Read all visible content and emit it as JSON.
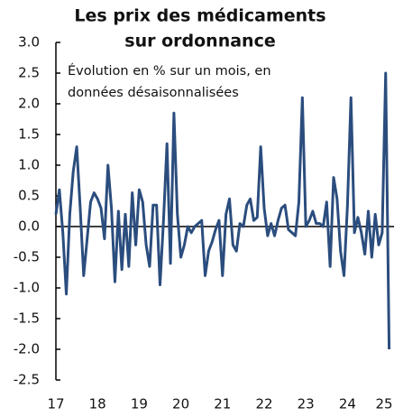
{
  "chart_data": {
    "type": "line",
    "title": [
      "Les prix des médicaments",
      "sur ordonnance"
    ],
    "subtitle": [
      "Évolution en % sur un mois, en",
      "données désaisonnalisées"
    ],
    "categories": [
      "17",
      null,
      null,
      null,
      null,
      null,
      null,
      null,
      null,
      null,
      null,
      null,
      "18",
      null,
      null,
      null,
      null,
      null,
      null,
      null,
      null,
      null,
      null,
      null,
      "19",
      null,
      null,
      null,
      null,
      null,
      null,
      null,
      null,
      null,
      null,
      null,
      "20",
      null,
      null,
      null,
      null,
      null,
      null,
      null,
      null,
      null,
      null,
      null,
      "21",
      null,
      null,
      null,
      null,
      null,
      null,
      null,
      null,
      null,
      null,
      null,
      "22",
      null,
      null,
      null,
      null,
      null,
      null,
      null,
      null,
      null,
      null,
      null,
      "23",
      null,
      null,
      null,
      null,
      null,
      null,
      null,
      null,
      null,
      null,
      null,
      "24",
      null,
      null,
      null,
      null,
      null,
      null,
      null,
      null,
      null,
      null,
      null,
      "25"
    ],
    "series": [
      {
        "color": "#2b4d7e",
        "values": [
          0.2,
          0.6,
          -0.1,
          -1.1,
          0.2,
          0.9,
          1.3,
          0.3,
          -0.8,
          -0.2,
          0.4,
          0.55,
          0.45,
          0.3,
          -0.2,
          1.0,
          0.3,
          -0.9,
          0.25,
          -0.7,
          0.2,
          -0.65,
          0.55,
          -0.3,
          0.6,
          0.4,
          -0.3,
          -0.65,
          0.35,
          0.35,
          -0.95,
          0.1,
          1.35,
          -0.6,
          1.85,
          0.2,
          -0.5,
          -0.3,
          0.0,
          -0.1,
          0.0,
          0.05,
          0.1,
          -0.8,
          -0.4,
          -0.25,
          -0.05,
          0.1,
          -0.8,
          0.2,
          0.45,
          -0.3,
          -0.4,
          0.05,
          0.0,
          0.35,
          0.45,
          0.1,
          0.15,
          1.3,
          0.3,
          -0.15,
          0.05,
          -0.15,
          0.1,
          0.3,
          0.35,
          -0.05,
          -0.1,
          -0.15,
          0.4,
          2.1,
          0.0,
          0.1,
          0.25,
          0.05,
          0.05,
          0.0,
          0.4,
          -0.65,
          0.8,
          0.45,
          -0.4,
          -0.8,
          0.35,
          2.1,
          -0.1,
          0.15,
          -0.1,
          -0.45,
          0.25,
          -0.5,
          0.2,
          -0.3,
          -0.1,
          2.5,
          -2.0
        ]
      }
    ],
    "ylim": [
      -2.5,
      3.0
    ],
    "yticks": [
      {
        "value": 3,
        "label": "3.0"
      },
      2.5,
      {
        "value": 2,
        "label": "2.0"
      },
      1.5,
      {
        "value": 1,
        "label": "1.0"
      },
      0.5,
      {
        "value": 0,
        "label": "0.0"
      },
      -0.5,
      {
        "value": -1,
        "label": "-1.0"
      },
      -1.5,
      {
        "value": -2,
        "label": "-2.0"
      },
      -2.5
    ]
  }
}
